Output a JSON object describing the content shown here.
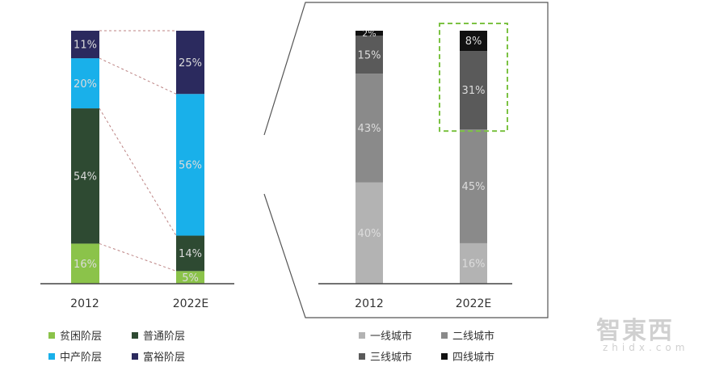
{
  "chart_data": [
    {
      "type": "bar",
      "stacked": true,
      "categories": [
        "2012",
        "2022E"
      ],
      "series": [
        {
          "name": "贫困阶层",
          "values": [
            16,
            5
          ],
          "color": "#8bc34a",
          "labels": [
            "16%",
            "5%"
          ]
        },
        {
          "name": "普通阶层",
          "values": [
            54,
            14
          ],
          "color": "#2e4a32",
          "labels": [
            "54%",
            "14%"
          ]
        },
        {
          "name": "中产阶层",
          "values": [
            20,
            56
          ],
          "color": "#19b0ea",
          "labels": [
            "20%",
            "56%"
          ]
        },
        {
          "name": "富裕阶层",
          "values": [
            11,
            25
          ],
          "color": "#2b2a5e",
          "labels": [
            "11%",
            "25%"
          ]
        }
      ],
      "ylim": [
        0,
        100
      ]
    },
    {
      "type": "bar",
      "stacked": true,
      "categories": [
        "2012",
        "2022E"
      ],
      "series": [
        {
          "name": "一线城市",
          "values": [
            40,
            16
          ],
          "color": "#b3b3b3",
          "labels": [
            "40%",
            "16%"
          ]
        },
        {
          "name": "二线城市",
          "values": [
            43,
            45
          ],
          "color": "#8a8a8a",
          "labels": [
            "43%",
            "45%"
          ]
        },
        {
          "name": "三线城市",
          "values": [
            15,
            31
          ],
          "color": "#5a5a5a",
          "labels": [
            "15%",
            "31%"
          ]
        },
        {
          "name": "四线城市",
          "values": [
            2,
            8
          ],
          "color": "#111111",
          "labels": [
            "2%",
            "8%"
          ]
        }
      ],
      "ylim": [
        0,
        100
      ],
      "highlight": {
        "category": "2022E",
        "series": [
          "三线城市",
          "四线城市"
        ],
        "color": "#7cc243"
      }
    }
  ],
  "watermark": {
    "text": "智東西",
    "subtext": "zhidx.com"
  }
}
